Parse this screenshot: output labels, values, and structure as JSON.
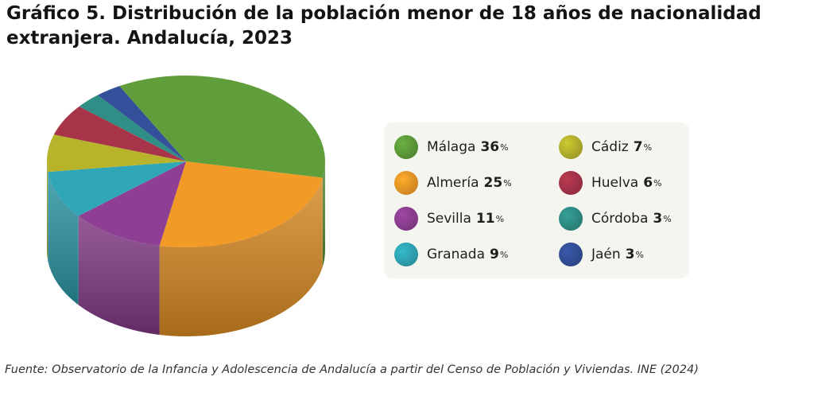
{
  "title": "Gráfico 5. Distribución de la población menor de 18 años de nacionalidad extranjera. Andalucía, 2023",
  "source": "Fuente: Observatorio de la Infancia y Adolescencia de Andalucía a partir del Censo de Población y Viviendas. INE (2024)",
  "percent_sign": "%",
  "chart_data": {
    "type": "pie",
    "title": "Gráfico 5. Distribución de la población menor de 18 años de nacionalidad extranjera. Andalucía, 2023",
    "categories": [
      "Málaga",
      "Almería",
      "Sevilla",
      "Granada",
      "Cádiz",
      "Huelva",
      "Córdoba",
      "Jaén"
    ],
    "values": [
      36,
      25,
      11,
      9,
      7,
      6,
      3,
      3
    ],
    "unit": "%",
    "colors": [
      "#5f9e3a",
      "#f29a26",
      "#8e3f93",
      "#2fa7b6",
      "#b7b42c",
      "#a8344a",
      "#2f8f86",
      "#35509a"
    ],
    "legend_position": "right"
  }
}
